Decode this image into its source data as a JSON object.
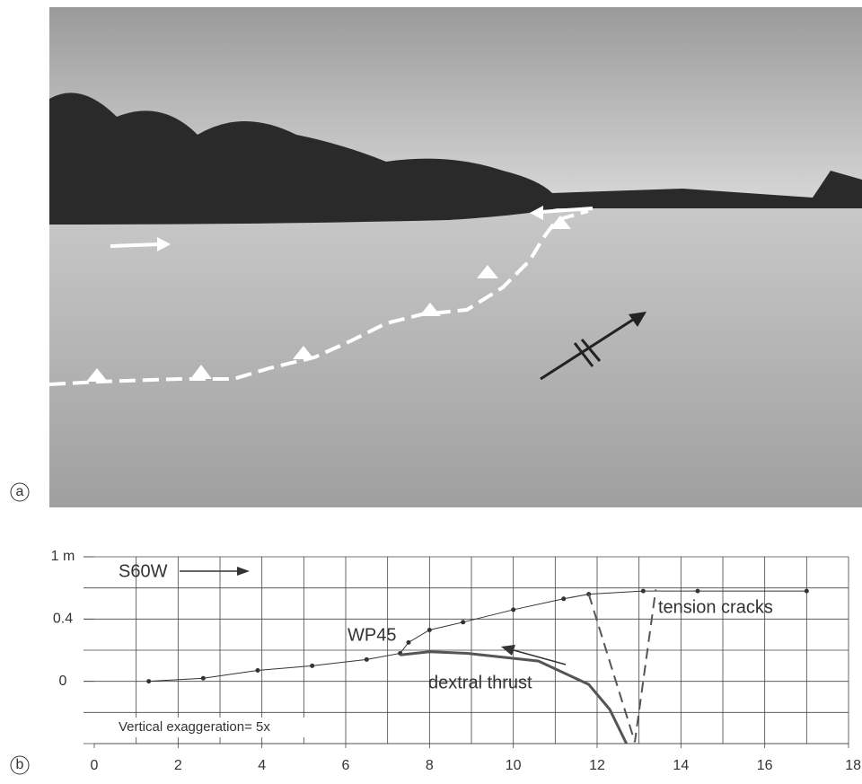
{
  "panels": [
    "a",
    "b"
  ],
  "chart_data": {
    "type": "line",
    "xlim": [
      0,
      18
    ],
    "ylim": [
      -0.4,
      0.8
    ],
    "xticks": [
      0,
      2,
      4,
      6,
      8,
      10,
      12,
      14,
      16,
      {
        "value": 18,
        "label": "18 m"
      }
    ],
    "yticks": [
      {
        "value": 0.8,
        "label": "1 m"
      },
      0.4,
      0
    ],
    "xgrid": [
      1,
      2,
      3,
      4,
      5,
      6,
      7,
      8,
      9,
      10,
      11,
      12,
      13,
      14,
      15,
      16,
      17,
      18
    ],
    "ygrid": [
      -0.4,
      -0.2,
      0,
      0.2,
      0.4,
      0.6,
      0.8
    ],
    "annotations": [
      "S60W",
      "WP45",
      "tension cracks",
      "dextral thrust",
      "Vertical exaggeration= 5x"
    ],
    "series": [
      {
        "color": "#333333",
        "markers": true,
        "width": 1,
        "x": [
          1.3,
          2.6,
          3.9,
          5.2,
          6.5,
          7.3,
          7.5,
          8.0,
          8.8,
          10.0,
          11.2,
          11.8,
          13.1,
          14.4,
          17.0
        ],
        "values": [
          0.0,
          0.02,
          0.07,
          0.1,
          0.14,
          0.18,
          0.25,
          0.33,
          0.38,
          0.46,
          0.53,
          0.56,
          0.58,
          0.58,
          0.58
        ]
      },
      {
        "color": "#555555",
        "markers": false,
        "width": 3,
        "x": [
          7.3,
          8.0,
          8.9,
          10.6,
          11.8,
          12.3,
          12.7
        ],
        "values": [
          0.17,
          0.19,
          0.18,
          0.13,
          -0.02,
          -0.18,
          -0.4
        ]
      },
      {
        "color": "#555555",
        "markers": false,
        "width": 2,
        "dash": true,
        "x": [
          11.8,
          12.9,
          13.4
        ],
        "values": [
          0.56,
          -0.39,
          0.59
        ]
      }
    ]
  }
}
